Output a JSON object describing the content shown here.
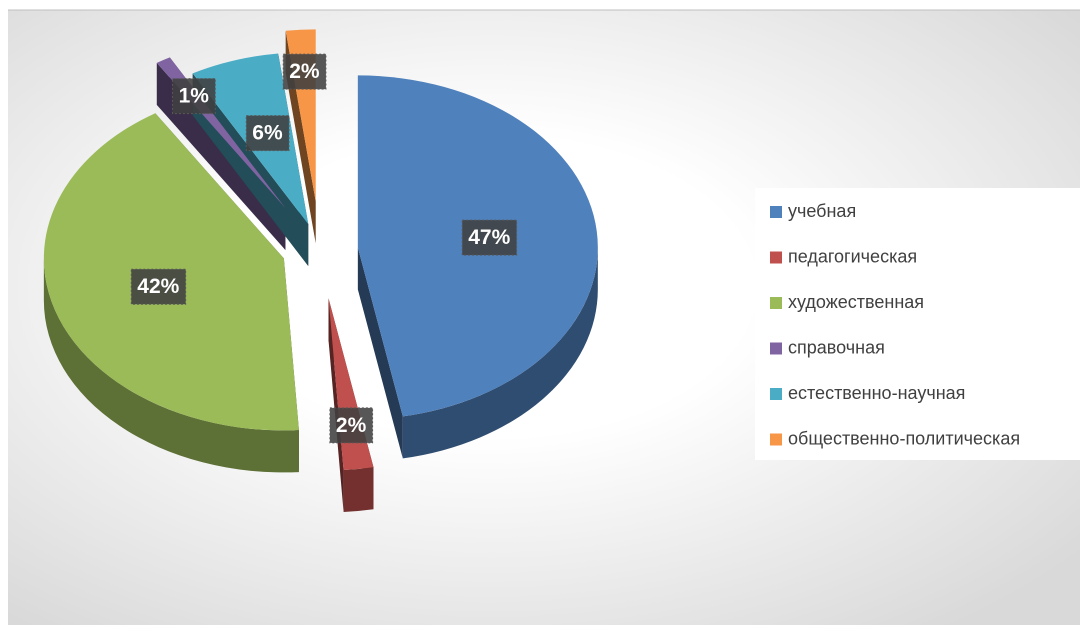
{
  "chart_data": {
    "type": "pie",
    "categories": [
      "учебная",
      "педагогическая",
      "художественная",
      "справочная",
      "естественно-научная",
      "общественно-политическая"
    ],
    "values": [
      47,
      2,
      42,
      1,
      6,
      2
    ],
    "value_labels": [
      "47%",
      "2%",
      "42%",
      "1%",
      "6%",
      "2%"
    ],
    "colors": [
      "#4f81bd",
      "#c0504d",
      "#9bbb59",
      "#8064a2",
      "#4bacc6",
      "#f79646"
    ],
    "legend": "right"
  }
}
